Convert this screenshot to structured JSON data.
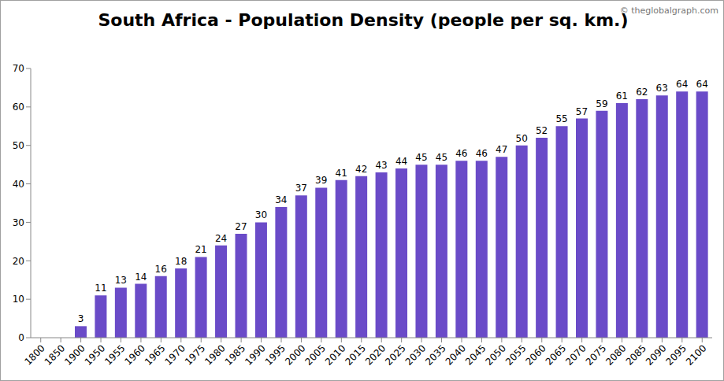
{
  "chart_data": {
    "type": "bar",
    "title": "South Africa - Population Density (people per sq. km.)",
    "annotations": [
      "© theglobalgraph.com"
    ],
    "categories": [
      "1800",
      "1850",
      "1900",
      "1950",
      "1955",
      "1960",
      "1965",
      "1970",
      "1975",
      "1980",
      "1985",
      "1990",
      "1995",
      "2000",
      "2005",
      "2010",
      "2015",
      "2020",
      "2025",
      "2030",
      "2035",
      "2040",
      "2045",
      "2050",
      "2055",
      "2060",
      "2065",
      "2070",
      "2075",
      "2080",
      "2085",
      "2090",
      "2095",
      "2100"
    ],
    "values": [
      0,
      0,
      3,
      11,
      13,
      14,
      16,
      18,
      21,
      24,
      27,
      30,
      34,
      37,
      39,
      41,
      42,
      43,
      44,
      45,
      45,
      46,
      46,
      47,
      50,
      52,
      55,
      57,
      59,
      61,
      62,
      63,
      64,
      64
    ],
    "color": "#6a4bc8",
    "ylim": [
      0,
      70
    ],
    "yticks": [
      0,
      10,
      20,
      30,
      40,
      50,
      60,
      70
    ],
    "grid": false,
    "data_labels": true
  }
}
